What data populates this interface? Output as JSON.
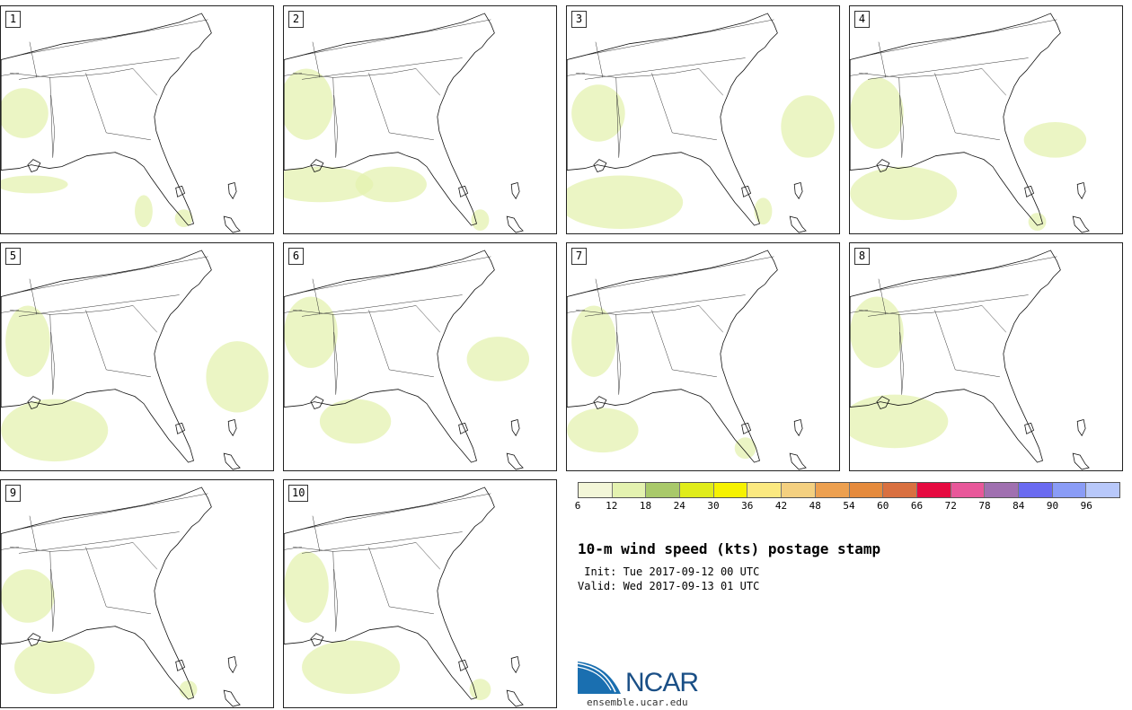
{
  "panels": [
    {
      "label": "1"
    },
    {
      "label": "2"
    },
    {
      "label": "3"
    },
    {
      "label": "4"
    },
    {
      "label": "5"
    },
    {
      "label": "6"
    },
    {
      "label": "7"
    },
    {
      "label": "8"
    },
    {
      "label": "9"
    },
    {
      "label": "10"
    }
  ],
  "colorbar": {
    "colors": [
      "#f3f6d8",
      "#e4f2b0",
      "#a9c96a",
      "#e0ec1a",
      "#f6f200",
      "#fbe980",
      "#f4d080",
      "#eda050",
      "#e58a3c",
      "#d97040",
      "#e60a40",
      "#e8589a",
      "#a070b0",
      "#6a6af0",
      "#8a9cf6",
      "#b8c8fa"
    ],
    "tick_labels": [
      "6",
      "12",
      "18",
      "24",
      "30",
      "36",
      "42",
      "48",
      "54",
      "60",
      "66",
      "72",
      "78",
      "84",
      "90",
      "96"
    ]
  },
  "title": "10-m wind speed (kts) postage stamp",
  "init_line": " Init: Tue 2017-09-12 00 UTC",
  "valid_line": "Valid: Wed 2017-09-13 01 UTC",
  "logo": {
    "text": "NCAR",
    "url": "ensemble.ucar.edu"
  }
}
